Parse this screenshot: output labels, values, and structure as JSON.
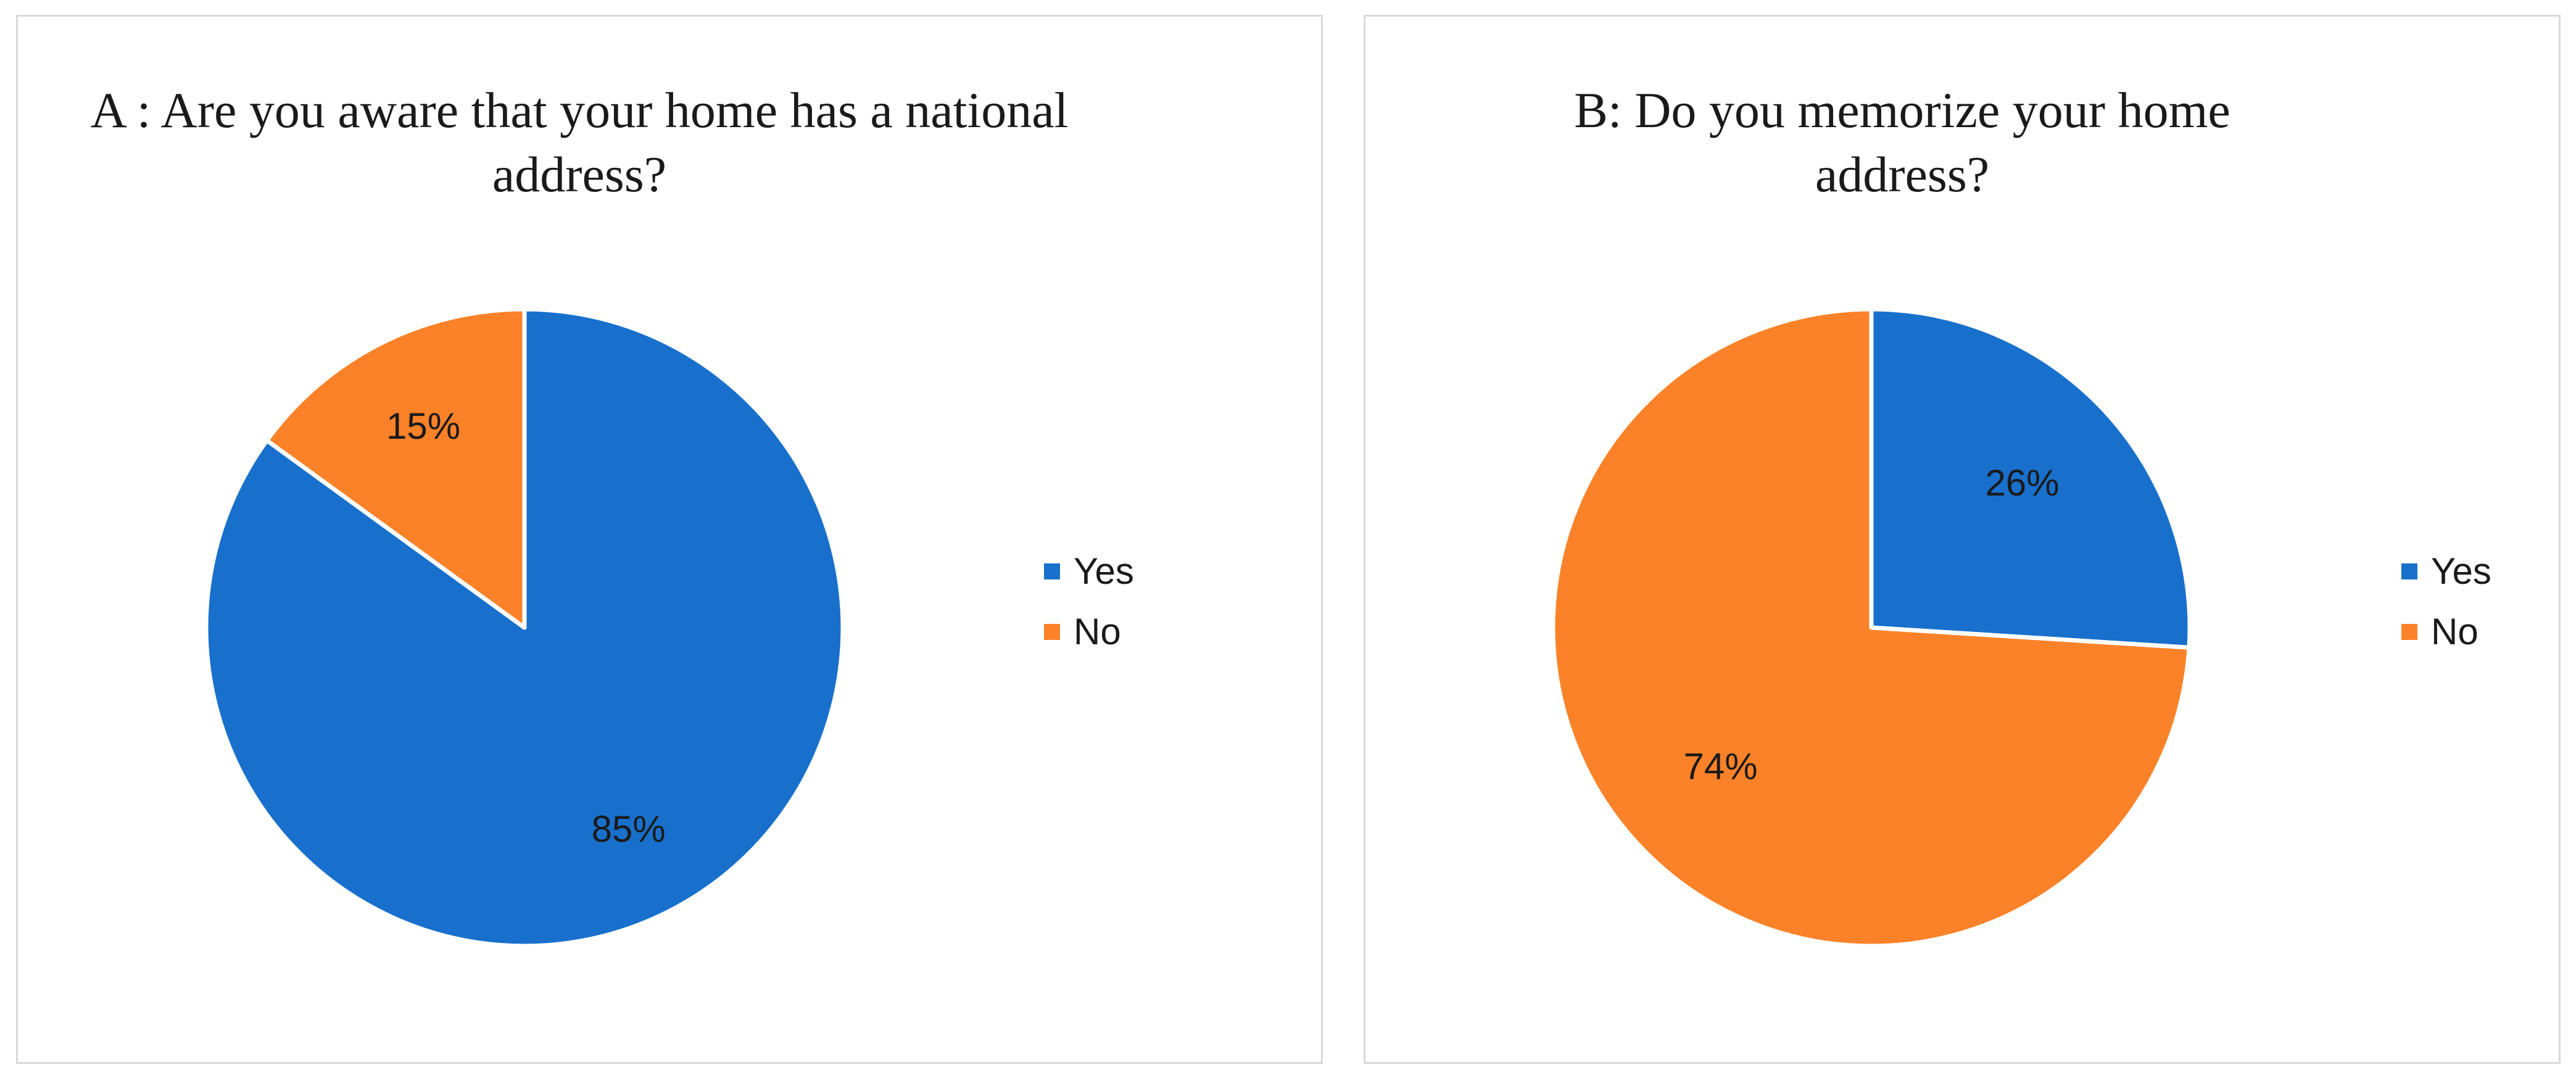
{
  "colors": {
    "yes": "#1870cc",
    "no": "#fb8228"
  },
  "chart_data": [
    {
      "type": "pie",
      "title": "A : Are you aware that your home has a national address?",
      "legend": "right",
      "slices": [
        {
          "name": "Yes",
          "value": 85,
          "label": "85%",
          "color": "#1870cc"
        },
        {
          "name": "No",
          "value": 15,
          "label": "15%",
          "color": "#fb8228"
        }
      ]
    },
    {
      "type": "pie",
      "title": "B: Do you memorize your home address?",
      "legend": "right",
      "slices": [
        {
          "name": "Yes",
          "value": 26,
          "label": "26%",
          "color": "#1870cc"
        },
        {
          "name": "No",
          "value": 74,
          "label": "74%",
          "color": "#fb8228"
        }
      ]
    }
  ]
}
